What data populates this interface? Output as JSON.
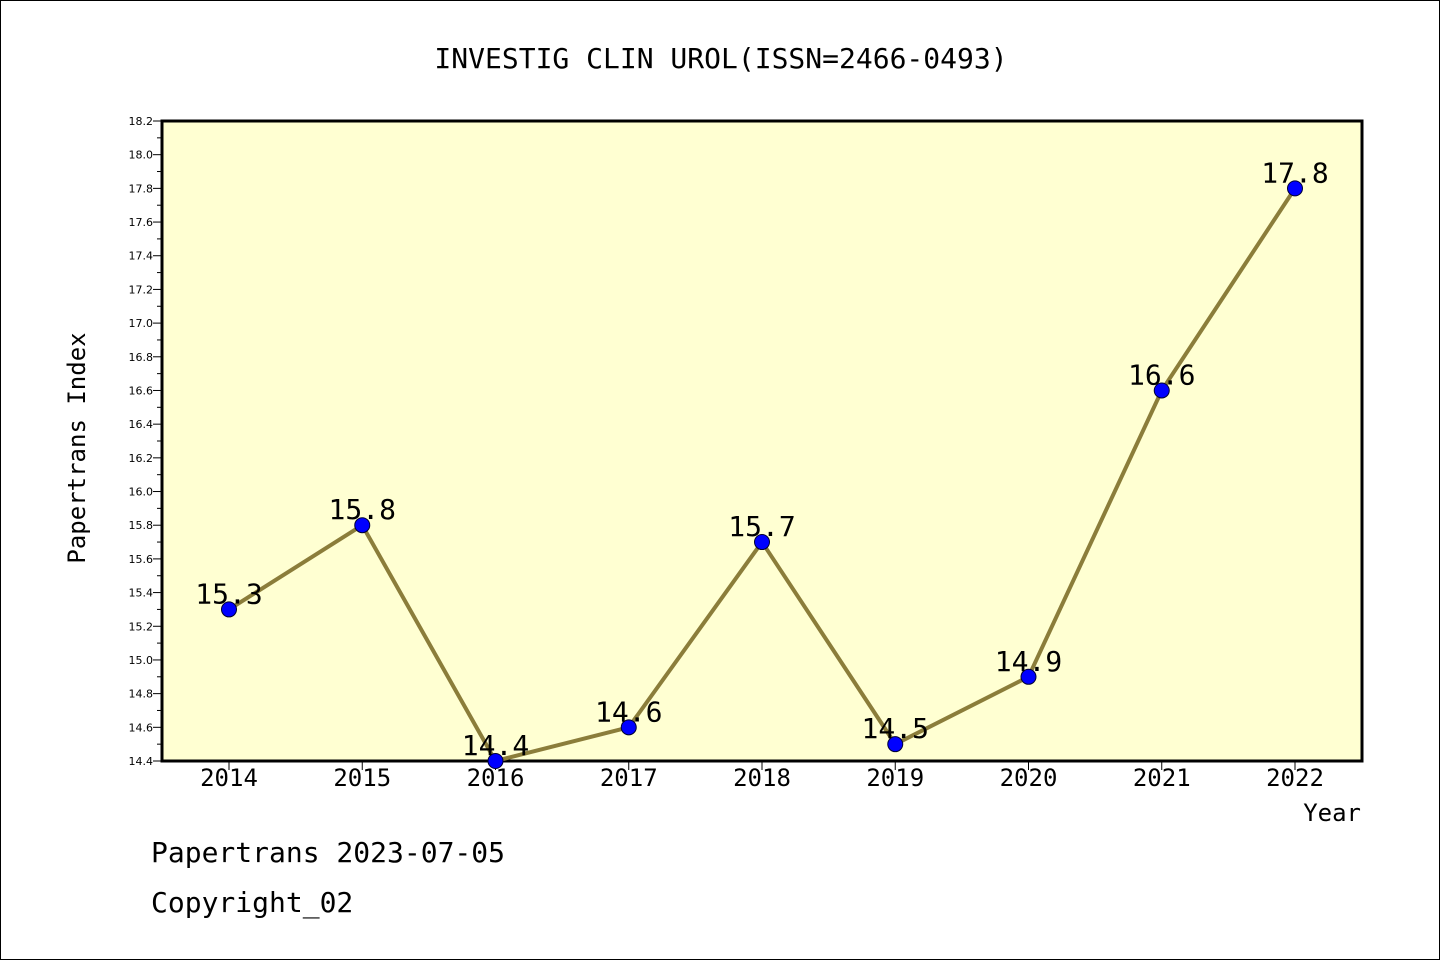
{
  "footer": {
    "line1": "Papertrans 2023-07-05",
    "line2": "Copyright_02"
  },
  "colors": {
    "plot_bg": "#ffffd2",
    "line": "#8b7d3a",
    "marker": "#0000ff",
    "axis": "#000000"
  },
  "chart_data": {
    "type": "line",
    "title": "INVESTIG CLIN UROL(ISSN=2466-0493)",
    "xlabel": "Year",
    "ylabel": "Papertrans Index",
    "categories": [
      "2014",
      "2015",
      "2016",
      "2017",
      "2018",
      "2019",
      "2020",
      "2021",
      "2022"
    ],
    "series": [
      {
        "values": [
          15.3,
          15.8,
          14.4,
          14.6,
          15.7,
          14.5,
          14.9,
          16.6,
          17.8
        ],
        "labels": [
          "15.3",
          "15.8",
          "14.4",
          "14.6",
          "15.7",
          "14.5",
          "14.9",
          "16.6",
          "17.8"
        ]
      }
    ],
    "ylim": [
      14.4,
      18.2
    ],
    "yticks": [
      "14.4",
      "14.6",
      "14.8",
      "15.0",
      "15.2",
      "15.4",
      "15.6",
      "15.8",
      "16.0",
      "16.2",
      "16.4",
      "16.6",
      "16.8",
      "17.0",
      "17.2",
      "17.4",
      "17.6",
      "17.8",
      "18.0",
      "18.2"
    ],
    "grid": false,
    "legend": "none"
  }
}
